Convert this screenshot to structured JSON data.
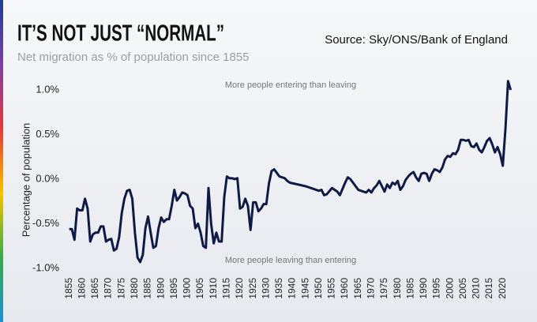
{
  "chart_data": {
    "type": "line",
    "title": "IT’S NOT JUST “NORMAL”",
    "subtitle": "Net migration as % of population since 1855",
    "source": "Source: Sky/ONS/Bank of England",
    "y_label": "Percentage of population",
    "annotations": [
      "More people entering than leaving",
      "More people leaving than entering"
    ],
    "xlim": [
      1853,
      2024
    ],
    "xticks": [
      1855,
      1860,
      1865,
      1870,
      1875,
      1880,
      1885,
      1890,
      1895,
      1900,
      1905,
      1910,
      1915,
      1920,
      1925,
      1930,
      1935,
      1940,
      1945,
      1950,
      1955,
      1960,
      1965,
      1970,
      1975,
      1980,
      1985,
      1990,
      1995,
      2000,
      2005,
      2010,
      2015,
      2020
    ],
    "ylim": [
      -1.05,
      1.2
    ],
    "yticks": [
      {
        "value": 1.0,
        "label": "1.0%"
      },
      {
        "value": 0.5,
        "label": "0.5%"
      },
      {
        "value": 0.0,
        "label": "0.0%"
      },
      {
        "value": -0.5,
        "label": "-0.5%"
      },
      {
        "value": -1.0,
        "label": "-1.0%"
      }
    ],
    "x": [
      1855,
      1856,
      1857,
      1858,
      1859,
      1860,
      1861,
      1862,
      1863,
      1864,
      1865,
      1866,
      1867,
      1868,
      1869,
      1870,
      1871,
      1872,
      1873,
      1874,
      1875,
      1876,
      1877,
      1878,
      1879,
      1880,
      1881,
      1882,
      1883,
      1884,
      1885,
      1886,
      1887,
      1888,
      1889,
      1890,
      1891,
      1892,
      1893,
      1894,
      1895,
      1896,
      1897,
      1898,
      1899,
      1900,
      1901,
      1902,
      1903,
      1904,
      1905,
      1906,
      1907,
      1908,
      1909,
      1910,
      1911,
      1912,
      1913,
      1914,
      1915,
      1916,
      1917,
      1918,
      1919,
      1920,
      1921,
      1922,
      1923,
      1924,
      1925,
      1926,
      1927,
      1928,
      1929,
      1930,
      1931,
      1932,
      1933,
      1934,
      1935,
      1936,
      1937,
      1938,
      1939,
      1945,
      1950,
      1951,
      1952,
      1953,
      1955,
      1957,
      1958,
      1960,
      1961,
      1962,
      1963,
      1965,
      1967,
      1968,
      1969,
      1970,
      1971,
      1972,
      1973,
      1974,
      1975,
      1976,
      1977,
      1978,
      1979,
      1980,
      1981,
      1982,
      1983,
      1984,
      1985,
      1986,
      1987,
      1988,
      1989,
      1990,
      1991,
      1992,
      1993,
      1994,
      1995,
      1996,
      1997,
      1998,
      1999,
      2000,
      2001,
      2002,
      2003,
      2004,
      2005,
      2006,
      2007,
      2008,
      2009,
      2010,
      2011,
      2012,
      2013,
      2014,
      2015,
      2016,
      2017,
      2018,
      2019,
      2020,
      2021,
      2022,
      2023
    ],
    "series": [
      {
        "name": "Net migration",
        "color": "#0f1a45",
        "values": [
          -0.56,
          -0.56,
          -0.68,
          -0.33,
          -0.35,
          -0.35,
          -0.22,
          -0.33,
          -0.7,
          -0.62,
          -0.6,
          -0.6,
          -0.53,
          -0.53,
          -0.7,
          -0.68,
          -0.67,
          -0.8,
          -0.78,
          -0.65,
          -0.38,
          -0.22,
          -0.13,
          -0.12,
          -0.22,
          -0.6,
          -0.88,
          -0.93,
          -0.85,
          -0.55,
          -0.42,
          -0.6,
          -0.77,
          -0.75,
          -0.55,
          -0.43,
          -0.48,
          -0.45,
          -0.45,
          -0.3,
          -0.12,
          -0.24,
          -0.2,
          -0.15,
          -0.16,
          -0.18,
          -0.3,
          -0.33,
          -0.55,
          -0.5,
          -0.6,
          -0.75,
          -0.77,
          -0.1,
          -0.5,
          -0.72,
          -0.6,
          -0.7,
          -0.7,
          -0.2,
          0.03,
          0.01,
          0.01,
          0.0,
          0.01,
          -0.33,
          -0.31,
          -0.22,
          -0.3,
          -0.57,
          -0.26,
          -0.26,
          -0.36,
          -0.33,
          -0.28,
          -0.28,
          -0.05,
          0.09,
          0.11,
          0.07,
          0.03,
          0.02,
          0.01,
          -0.02,
          -0.04,
          -0.08,
          -0.13,
          -0.12,
          -0.18,
          -0.17,
          -0.1,
          -0.14,
          -0.18,
          -0.04,
          0.02,
          0.0,
          -0.04,
          -0.12,
          -0.14,
          -0.15,
          -0.12,
          -0.15,
          -0.1,
          -0.07,
          -0.02,
          -0.08,
          -0.14,
          -0.06,
          -0.1,
          -0.04,
          -0.06,
          -0.02,
          -0.12,
          -0.08,
          -0.01,
          0.03,
          0.06,
          0.08,
          0.02,
          -0.02,
          0.06,
          0.07,
          0.06,
          -0.02,
          0.06,
          0.11,
          0.1,
          0.08,
          0.13,
          0.22,
          0.26,
          0.25,
          0.29,
          0.28,
          0.33,
          0.44,
          0.44,
          0.43,
          0.44,
          0.37,
          0.36,
          0.4,
          0.33,
          0.3,
          0.36,
          0.43,
          0.46,
          0.39,
          0.3,
          0.36,
          0.28,
          0.15,
          0.56,
          1.1,
          1.0
        ]
      }
    ]
  }
}
